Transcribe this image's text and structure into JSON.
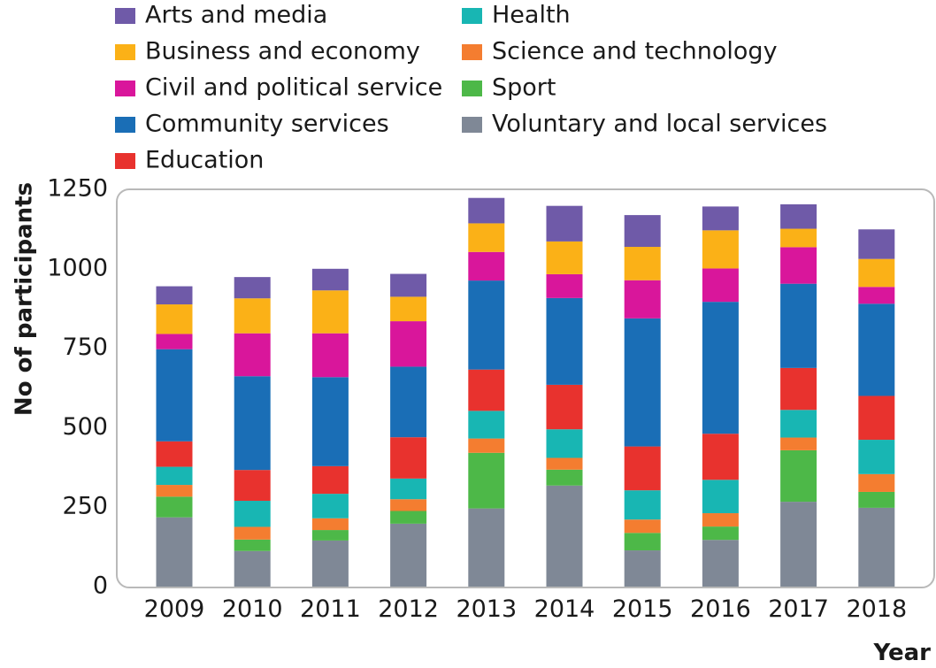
{
  "chart_data": {
    "type": "bar",
    "stacked": true,
    "title": "",
    "xlabel": "Year",
    "ylabel": "No of participants",
    "ylim": [
      0,
      1250
    ],
    "yticks": [
      0,
      250,
      500,
      750,
      1000,
      1250
    ],
    "grid": false,
    "legend_position": "top",
    "categories": [
      "2009",
      "2010",
      "2011",
      "2012",
      "2013",
      "2014",
      "2015",
      "2016",
      "2017",
      "2018"
    ],
    "series": [
      {
        "name": "Voluntary and local services",
        "color": "#7f8896",
        "values": [
          218,
          112,
          145,
          198,
          246,
          318,
          114,
          147,
          267,
          248
        ]
      },
      {
        "name": "Sport",
        "color": "#4db848",
        "values": [
          65,
          36,
          33,
          40,
          175,
          50,
          55,
          42,
          162,
          50
        ]
      },
      {
        "name": "Science and technology",
        "color": "#f47d30",
        "values": [
          37,
          40,
          37,
          37,
          45,
          37,
          42,
          42,
          40,
          56
        ]
      },
      {
        "name": "Health",
        "color": "#18b6b3",
        "values": [
          57,
          82,
          77,
          65,
          87,
          90,
          92,
          105,
          87,
          108
        ]
      },
      {
        "name": "Education",
        "color": "#e8322e",
        "values": [
          80,
          97,
          87,
          130,
          130,
          140,
          138,
          145,
          132,
          138
        ]
      },
      {
        "name": "Community services",
        "color": "#1a6eb6",
        "values": [
          290,
          295,
          280,
          222,
          280,
          273,
          403,
          415,
          265,
          290
        ]
      },
      {
        "name": "Civil and political service",
        "color": "#d9169b",
        "values": [
          48,
          135,
          138,
          143,
          90,
          75,
          120,
          105,
          115,
          53
        ]
      },
      {
        "name": "Business and economy",
        "color": "#fbb117",
        "values": [
          93,
          110,
          135,
          77,
          90,
          103,
          105,
          120,
          58,
          88
        ]
      },
      {
        "name": "Arts and media",
        "color": "#6f5aa8",
        "values": [
          57,
          67,
          68,
          72,
          80,
          112,
          100,
          75,
          77,
          93
        ]
      }
    ],
    "legend_order": [
      "Arts and media",
      "Business and economy",
      "Civil and political service",
      "Community services",
      "Education",
      "Health",
      "Science and technology",
      "Sport",
      "Voluntary and local services"
    ]
  }
}
